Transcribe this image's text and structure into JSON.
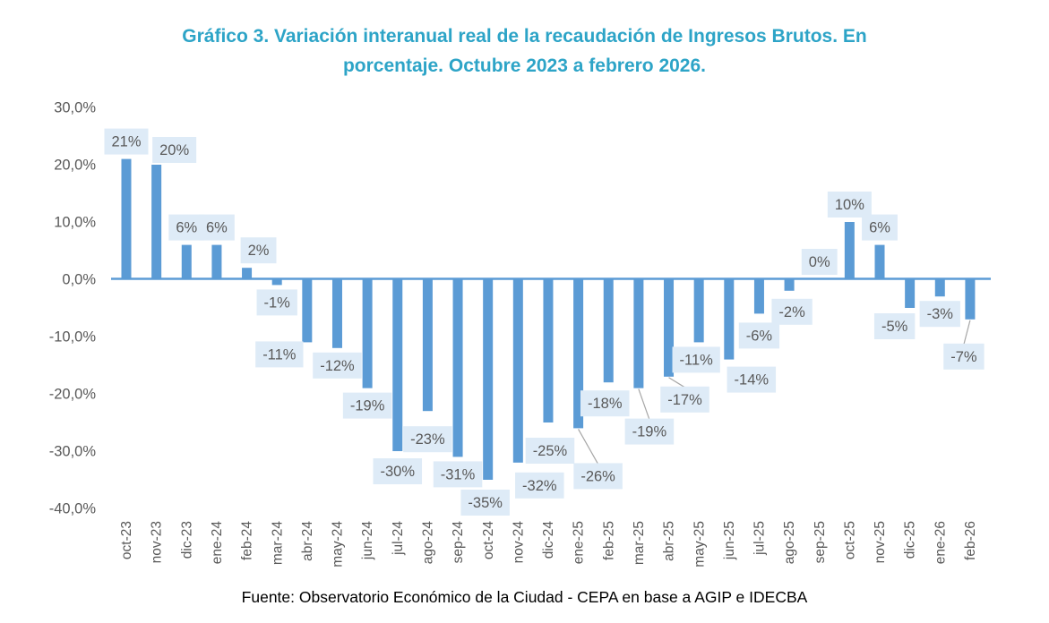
{
  "title": {
    "line1": "Gráfico 3. Variación interanual real de la recaudación de Ingresos Brutos. En",
    "line2": "porcentaje. Octubre 2023 a febrero 2026."
  },
  "source": "Fuente: Observatorio Económico de la Ciudad - CEPA en base a AGIP e IDECBA",
  "colors": {
    "title": "#2DA4C7",
    "bar": "#5B9BD5",
    "axis_line": "#5B9BD5",
    "label_bg": "#DEEBF7",
    "label_text": "#595959",
    "axis_text": "#595959",
    "leader_line": "#A6A6A6",
    "source_text": "#000000"
  },
  "chart_data": {
    "type": "bar",
    "title": "Gráfico 3. Variación interanual real de la recaudación de Ingresos Brutos. En porcentaje. Octubre 2023 a febrero 2026.",
    "xlabel": "",
    "ylabel": "",
    "ylim": [
      -40,
      30
    ],
    "grid": false,
    "legend": false,
    "categories": [
      "oct-23",
      "nov-23",
      "dic-23",
      "ene-24",
      "feb-24",
      "mar-24",
      "abr-24",
      "may-24",
      "jun-24",
      "jul-24",
      "ago-24",
      "sep-24",
      "oct-24",
      "nov-24",
      "dic-24",
      "ene-25",
      "feb-25",
      "mar-25",
      "abr-25",
      "may-25",
      "jun-25",
      "jul-25",
      "ago-25",
      "sep-25",
      "oct-25",
      "nov-25",
      "dic-25",
      "ene-26",
      "feb-26"
    ],
    "values": [
      21,
      20,
      6,
      6,
      2,
      -1,
      -11,
      -12,
      -19,
      -30,
      -23,
      -31,
      -35,
      -32,
      -25,
      -26,
      -18,
      -19,
      -17,
      -11,
      -14,
      -6,
      -2,
      0,
      10,
      6,
      -5,
      -3,
      -7
    ],
    "point_labels": [
      "21%",
      "20%",
      "6%",
      "6%",
      "2%",
      "-1%",
      "-11%",
      "-12%",
      "-19%",
      "-30%",
      "-23%",
      "-31%",
      "-35%",
      "-32%",
      "-25%",
      "-26%",
      "-18%",
      "-19%",
      "-17%",
      "-11%",
      "-14%",
      "-6%",
      "-2%",
      "0%",
      "10%",
      "6%",
      "-5%",
      "-3%",
      "-7%"
    ],
    "y_ticks": {
      "labels": [
        "30,0%",
        "20,0%",
        "10,0%",
        "0,0%",
        "-10,0%",
        "-20,0%",
        "-30,0%",
        "-40,0%"
      ],
      "values": [
        30,
        20,
        10,
        0,
        -10,
        -20,
        -30,
        -40
      ]
    },
    "label_layout": {
      "offsets": {
        "1": [
          20,
          3
        ],
        "4": [
          13,
          0
        ],
        "6": [
          -31,
          -6
        ],
        "9": [
          0,
          3
        ],
        "10": [
          0,
          12
        ],
        "12": [
          -3,
          6
        ],
        "13": [
          24,
          6
        ],
        "14": [
          2,
          12
        ],
        "15": [
          22,
          34
        ],
        "16": [
          -4,
          4
        ],
        "17": [
          12,
          29
        ],
        "18": [
          18,
          6
        ],
        "19": [
          -3,
          0
        ],
        "20": [
          25,
          3
        ],
        "21": [
          0,
          5
        ],
        "22": [
          3,
          4
        ],
        "26": [
          -17,
          1
        ],
        "28": [
          -7,
          22
        ]
      },
      "leader_indices": [
        15,
        17,
        18,
        28
      ]
    }
  }
}
